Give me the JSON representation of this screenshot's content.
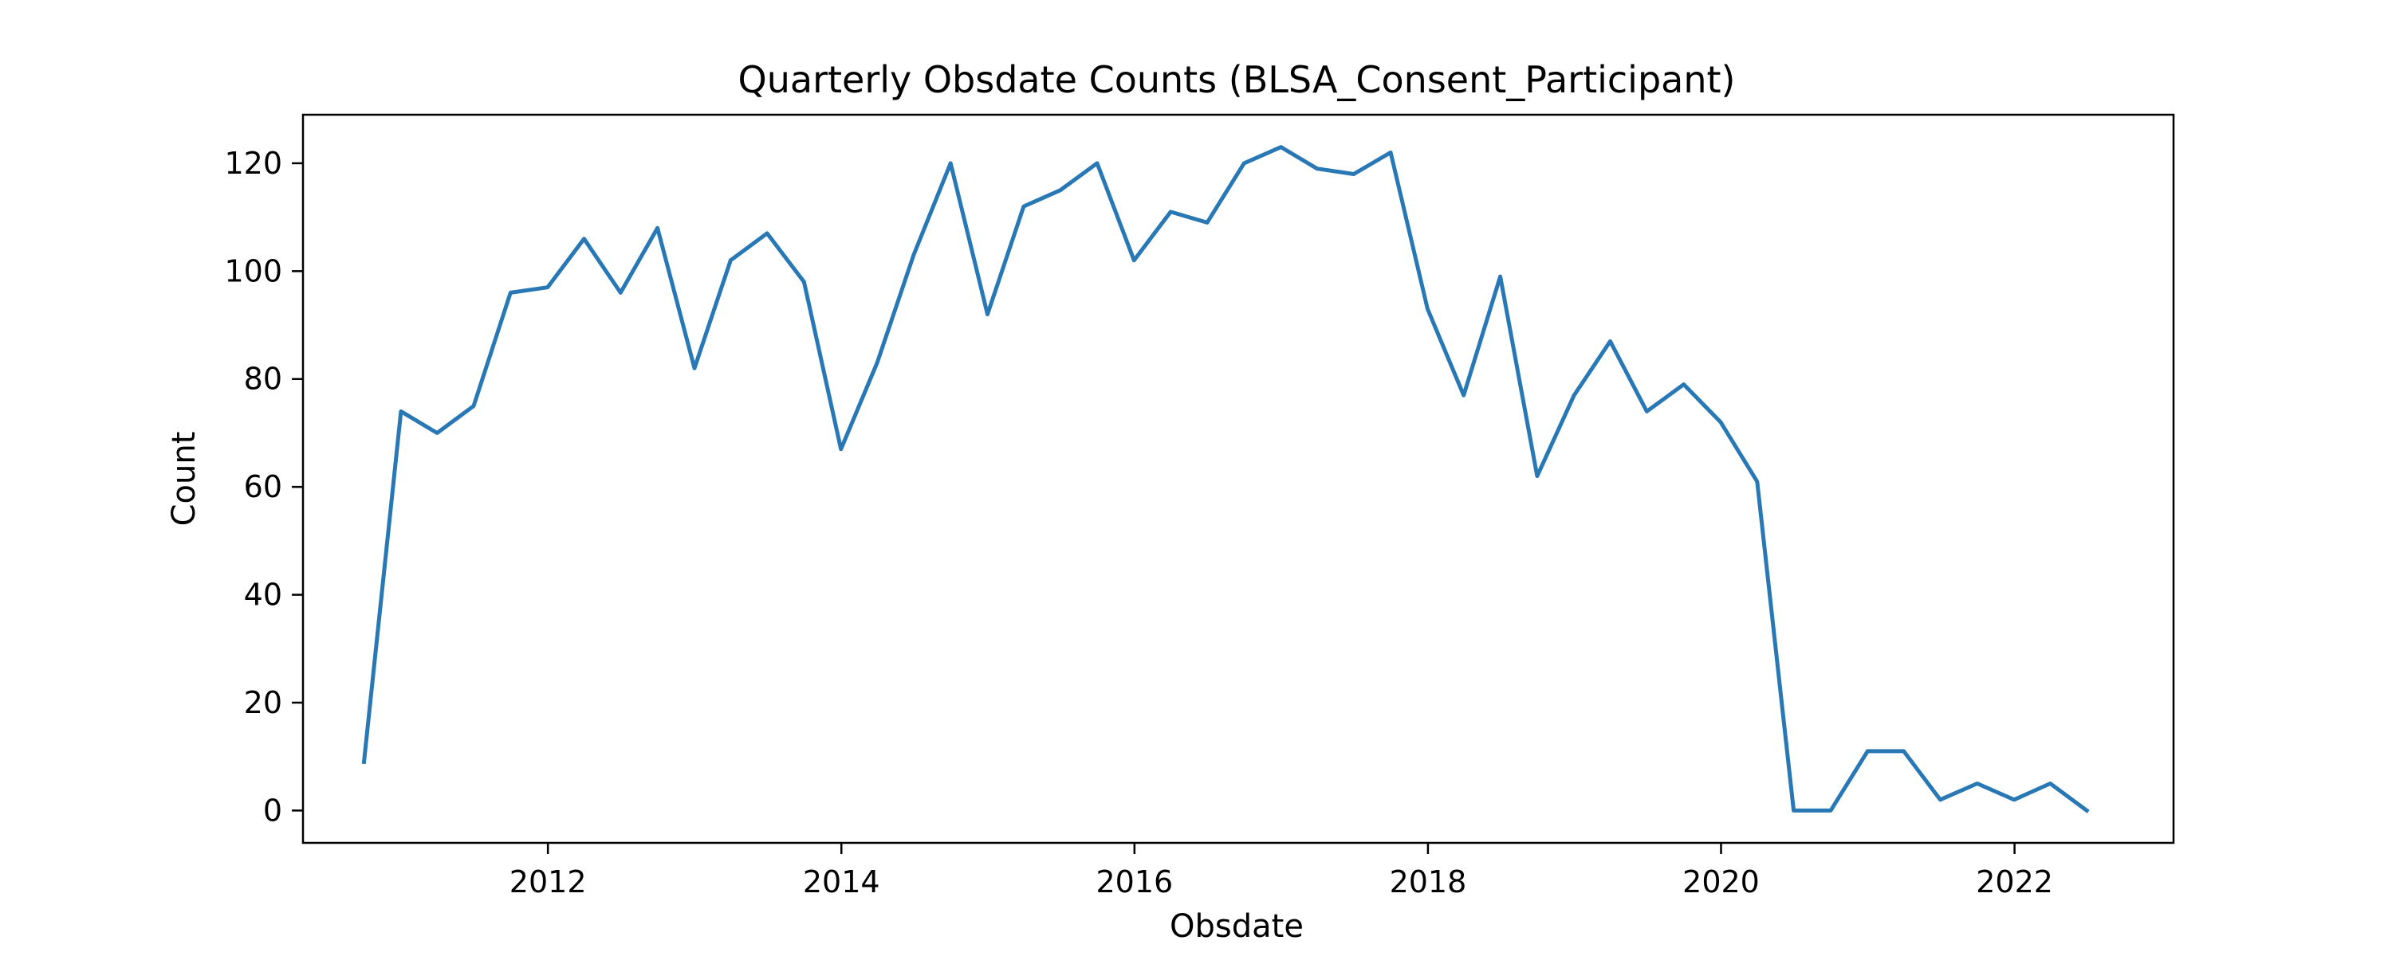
{
  "chart_data": {
    "type": "line",
    "title": "Quarterly Obsdate Counts (BLSA_Consent_Participant)",
    "xlabel": "Obsdate",
    "ylabel": "Count",
    "xlim": [
      "2010-05-01",
      "2023-02-01"
    ],
    "ylim": [
      -6,
      129
    ],
    "x_ticks": [
      "2012",
      "2014",
      "2016",
      "2018",
      "2020",
      "2022"
    ],
    "x_tick_dates": [
      "2012-01-01",
      "2014-01-01",
      "2016-01-01",
      "2018-01-01",
      "2020-01-01",
      "2022-01-01"
    ],
    "y_ticks": [
      0,
      20,
      40,
      60,
      80,
      100,
      120
    ],
    "grid": false,
    "legend": false,
    "line_color": "#2878b5",
    "series": [
      {
        "x": [
          "2010-09-30",
          "2010-12-31",
          "2011-03-31",
          "2011-06-30",
          "2011-09-30",
          "2011-12-31",
          "2012-03-31",
          "2012-06-30",
          "2012-09-30",
          "2012-12-31",
          "2013-03-31",
          "2013-06-30",
          "2013-09-30",
          "2013-12-31",
          "2014-03-31",
          "2014-06-30",
          "2014-09-30",
          "2014-12-31",
          "2015-03-31",
          "2015-06-30",
          "2015-09-30",
          "2015-12-31",
          "2016-03-31",
          "2016-06-30",
          "2016-09-30",
          "2016-12-31",
          "2017-03-31",
          "2017-06-30",
          "2017-09-30",
          "2017-12-31",
          "2018-03-31",
          "2018-06-30",
          "2018-09-30",
          "2018-12-31",
          "2019-03-31",
          "2019-06-30",
          "2019-09-30",
          "2019-12-31",
          "2020-03-31",
          "2020-06-30",
          "2020-09-30",
          "2020-12-31",
          "2021-03-31",
          "2021-06-30",
          "2021-09-30",
          "2021-12-31",
          "2022-03-31",
          "2022-06-30"
        ],
        "y": [
          9,
          74,
          70,
          75,
          96,
          97,
          106,
          96,
          108,
          82,
          102,
          107,
          98,
          67,
          83,
          103,
          120,
          92,
          112,
          115,
          120,
          102,
          111,
          109,
          120,
          123,
          119,
          118,
          122,
          93,
          77,
          99,
          62,
          77,
          87,
          74,
          79,
          72,
          61,
          0,
          0,
          11,
          11,
          2,
          5,
          2,
          5,
          0
        ]
      }
    ]
  }
}
